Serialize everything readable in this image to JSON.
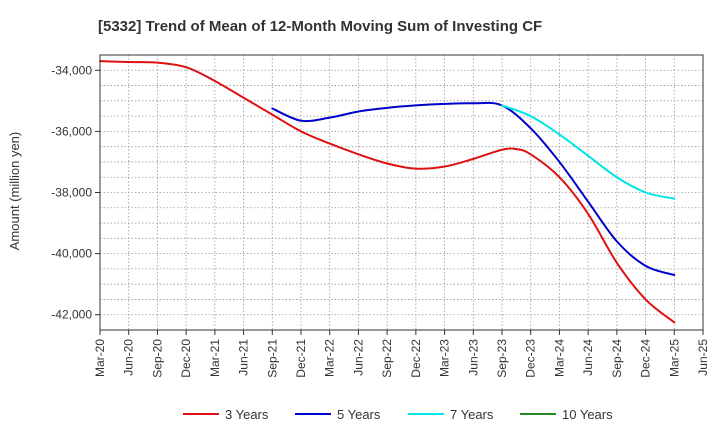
{
  "chart_data": {
    "type": "line",
    "title": "[5332]  Trend of Mean of 12-Month Moving Sum of Investing CF",
    "xlabel": "",
    "ylabel": "Amount (million yen)",
    "ylim": [
      -42500,
      -33500
    ],
    "yticks": [
      -34000,
      -36000,
      -38000,
      -40000,
      -42000
    ],
    "ytick_labels": [
      "-34,000",
      "-36,000",
      "-38,000",
      "-40,000",
      "-42,000"
    ],
    "xtick_labels": [
      "Mar-20",
      "Jun-20",
      "Sep-20",
      "Dec-20",
      "Mar-21",
      "Jun-21",
      "Sep-21",
      "Dec-21",
      "Mar-22",
      "Jun-22",
      "Sep-22",
      "Dec-22",
      "Mar-23",
      "Jun-23",
      "Sep-23",
      "Dec-23",
      "Mar-24",
      "Jun-24",
      "Sep-24",
      "Dec-24",
      "Mar-25",
      "Jun-25"
    ],
    "grid": true,
    "series": [
      {
        "name": "3 Years",
        "color": "#dd1111",
        "x": [
          0,
          1,
          2,
          3,
          4,
          5,
          6,
          7,
          8,
          9,
          10,
          11,
          12,
          13,
          14,
          14.5,
          15,
          16,
          17,
          18,
          19,
          20
        ],
        "values": [
          -33700,
          -33730,
          -33750,
          -33900,
          -34350,
          -34900,
          -35450,
          -36000,
          -36400,
          -36750,
          -37050,
          -37220,
          -37150,
          -36900,
          -36600,
          -36580,
          -36750,
          -37500,
          -38700,
          -40300,
          -41500,
          -42250
        ]
      },
      {
        "name": "5 Years",
        "color": "#0000cc",
        "x": [
          6,
          7,
          8,
          9,
          10,
          11,
          12,
          13,
          14,
          15,
          16,
          17,
          18,
          19,
          20
        ],
        "values": [
          -35250,
          -35650,
          -35550,
          -35350,
          -35230,
          -35150,
          -35100,
          -35080,
          -35150,
          -35900,
          -37000,
          -38300,
          -39600,
          -40400,
          -40700
        ]
      },
      {
        "name": "7 Years",
        "color": "#00e5e5",
        "x": [
          14,
          15,
          16,
          17,
          18,
          19,
          20
        ],
        "values": [
          -35150,
          -35500,
          -36100,
          -36800,
          -37500,
          -38000,
          -38200
        ]
      },
      {
        "name": "10 Years",
        "color": "#228822",
        "x": [],
        "values": []
      }
    ]
  }
}
